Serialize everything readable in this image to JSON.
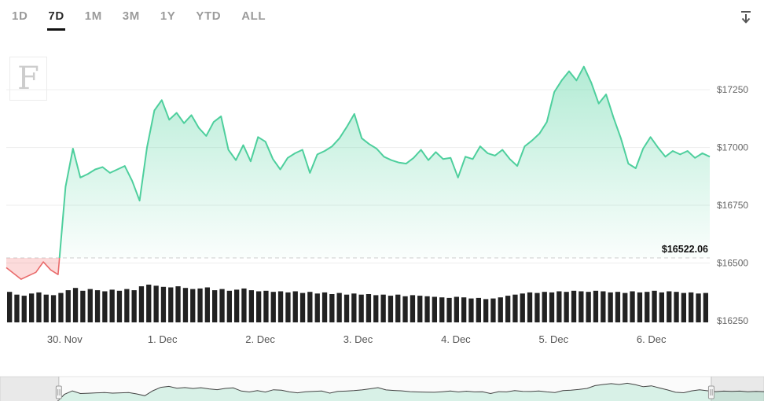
{
  "tabs": {
    "items": [
      {
        "label": "1D",
        "active": false
      },
      {
        "label": "7D",
        "active": true
      },
      {
        "label": "1M",
        "active": false
      },
      {
        "label": "3M",
        "active": false
      },
      {
        "label": "1Y",
        "active": false
      },
      {
        "label": "YTD",
        "active": false
      },
      {
        "label": "ALL",
        "active": false
      }
    ]
  },
  "toolbar": {
    "download_icon": "download-icon"
  },
  "watermark": {
    "letter": "F"
  },
  "chart_data": {
    "type": "area",
    "title": "",
    "xlabel": "",
    "ylabel": "",
    "legend": "none",
    "grid": "horizontal",
    "threshold": {
      "value": 16522.06,
      "label": "$16522.06"
    },
    "colors": {
      "positive_line": "#4ecf9d",
      "positive_fill": "#5fd6a6",
      "negative_line": "#e96a6a",
      "negative_fill": "rgba(243,110,110,0.25)",
      "volume": "#222222",
      "threshold_line": "#cfcfcf"
    },
    "y_axis": {
      "range": [
        16250,
        17400
      ],
      "ticks": [
        {
          "value": 17250,
          "label": "$17250"
        },
        {
          "value": 17000,
          "label": "$17000"
        },
        {
          "value": 16750,
          "label": "$16750"
        },
        {
          "value": 16500,
          "label": "$16500"
        },
        {
          "value": 16250,
          "label": "$16250"
        }
      ]
    },
    "x_axis": {
      "ticks": [
        {
          "label": "30. Nov",
          "pos": 0.083
        },
        {
          "label": "1. Dec",
          "pos": 0.222
        },
        {
          "label": "2. Dec",
          "pos": 0.361
        },
        {
          "label": "3. Dec",
          "pos": 0.5
        },
        {
          "label": "4. Dec",
          "pos": 0.639
        },
        {
          "label": "5. Dec",
          "pos": 0.778
        },
        {
          "label": "6. Dec",
          "pos": 0.917
        }
      ]
    },
    "series": [
      {
        "name": "price",
        "values": [
          16480,
          16455,
          16430,
          16445,
          16460,
          16505,
          16470,
          16450,
          16830,
          16995,
          16870,
          16885,
          16905,
          16915,
          16890,
          16905,
          16920,
          16855,
          16770,
          17000,
          17160,
          17205,
          17120,
          17150,
          17105,
          17140,
          17085,
          17050,
          17110,
          17135,
          16990,
          16945,
          17010,
          16940,
          17045,
          17025,
          16950,
          16905,
          16955,
          16975,
          16990,
          16890,
          16970,
          16985,
          17005,
          17040,
          17090,
          17145,
          17040,
          17015,
          16995,
          16960,
          16945,
          16935,
          16930,
          16955,
          16990,
          16945,
          16980,
          16950,
          16955,
          16870,
          16960,
          16950,
          17005,
          16975,
          16965,
          16990,
          16950,
          16920,
          17005,
          17030,
          17060,
          17110,
          17240,
          17290,
          17330,
          17290,
          17350,
          17280,
          17190,
          17230,
          17130,
          17040,
          16930,
          16910,
          16995,
          17045,
          17000,
          16960,
          16985,
          16970,
          16985,
          16955,
          16975,
          16960
        ]
      },
      {
        "name": "volume",
        "values": [
          55,
          50,
          48,
          52,
          54,
          50,
          49,
          53,
          58,
          62,
          57,
          60,
          58,
          56,
          59,
          57,
          60,
          58,
          65,
          68,
          66,
          64,
          63,
          65,
          62,
          60,
          61,
          63,
          58,
          60,
          57,
          59,
          61,
          58,
          56,
          57,
          55,
          56,
          54,
          56,
          53,
          55,
          52,
          54,
          51,
          53,
          50,
          52,
          50,
          51,
          49,
          50,
          48,
          50,
          47,
          49,
          48,
          47,
          46,
          45,
          44,
          46,
          45,
          43,
          44,
          42,
          43,
          45,
          48,
          50,
          52,
          54,
          53,
          55,
          54,
          56,
          55,
          57,
          56,
          55,
          57,
          56,
          54,
          55,
          53,
          56,
          54,
          55,
          57,
          54,
          56,
          55,
          53,
          54,
          52,
          53
        ]
      }
    ]
  },
  "navigator": {
    "selected_range": [
      0.077,
      0.931
    ]
  }
}
